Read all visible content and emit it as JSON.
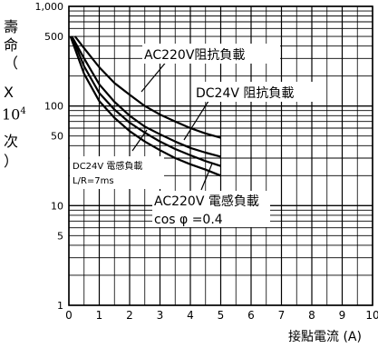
{
  "chart_data": {
    "type": "line",
    "xlabel": "接點電流 (A)",
    "ylabel_parts": [
      "壽",
      "命",
      "（",
      "X",
      "10",
      "4",
      "次",
      "）"
    ],
    "xlim": [
      0,
      10
    ],
    "ylim": [
      1,
      1000
    ],
    "yscale": "log",
    "grid": true,
    "x_ticks": [
      "0",
      "1",
      "2",
      "3",
      "4",
      "5",
      "6",
      "7",
      "8",
      "9",
      "10"
    ],
    "y_ticks": [
      {
        "value": 1,
        "label": "1"
      },
      {
        "value": 5,
        "label": "5"
      },
      {
        "value": 10,
        "label": "10"
      },
      {
        "value": 50,
        "label": "50"
      },
      {
        "value": 100,
        "label": "100"
      },
      {
        "value": 500,
        "label": "500"
      },
      {
        "value": 1000,
        "label": "1,000"
      }
    ],
    "series": [
      {
        "name": "AC220V 阻抗負載",
        "x": [
          0.2,
          0.5,
          1.0,
          1.5,
          2.0,
          2.5,
          3.0,
          3.5,
          4.0,
          4.5,
          5.0
        ],
        "y": [
          500,
          380,
          245,
          170,
          130,
          100,
          82,
          70,
          60,
          53,
          48
        ]
      },
      {
        "name": "DC24V 阻抗負載",
        "x": [
          0.1,
          0.5,
          1.0,
          1.5,
          2.0,
          2.5,
          3.0,
          3.5,
          4.0,
          4.5,
          5.0
        ],
        "y": [
          500,
          300,
          165,
          110,
          80,
          62,
          52,
          44,
          38,
          34,
          31
        ]
      },
      {
        "name": "DC24V 電感負載 L/R=7ms",
        "x": [
          0.1,
          0.5,
          1.0,
          1.5,
          2.0,
          2.5,
          3.0,
          3.5,
          4.0,
          4.5,
          5.0
        ],
        "y": [
          500,
          250,
          135,
          92,
          68,
          54,
          44,
          37,
          32,
          28,
          25
        ]
      },
      {
        "name": "AC220V 電感負載 cos φ =0.4",
        "x": [
          0.05,
          0.5,
          1.0,
          1.5,
          2.0,
          2.5,
          3.0,
          3.5,
          4.0,
          4.5,
          5.0
        ],
        "y": [
          500,
          210,
          112,
          76,
          56,
          44,
          36,
          30,
          26,
          23,
          20
        ]
      }
    ],
    "annotations": [
      {
        "lines": [
          "AC220V阻抗負載"
        ],
        "series": 0
      },
      {
        "lines": [
          "DC24V 阻抗負載"
        ],
        "series": 1
      },
      {
        "lines": [
          "DC24V 電感負載",
          "L/R=7ms"
        ],
        "series": 2
      },
      {
        "lines": [
          "AC220V 電感負載",
          "cos φ =0.4"
        ],
        "series": 3
      }
    ]
  }
}
